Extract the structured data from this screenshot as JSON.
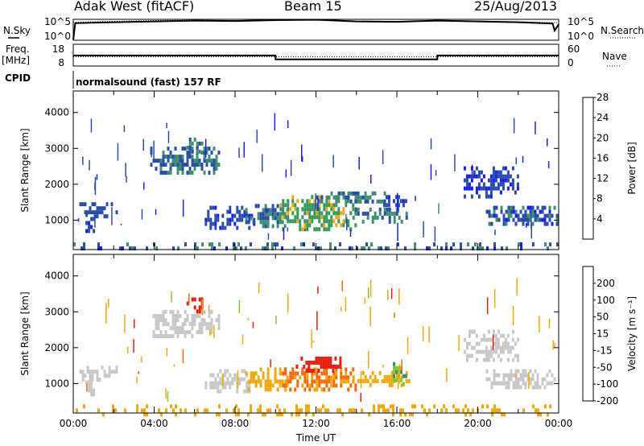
{
  "header": {
    "station": "Adak West (fitACF)",
    "beam": "Beam 15",
    "date": "25/Aug/2013"
  },
  "chart_data": [
    {
      "type": "line",
      "panel": "noise",
      "left_label": "N.Sky",
      "right_label": "N.Search",
      "left_ticks": [
        "10^5",
        "10^0"
      ],
      "right_ticks": [
        "10^5",
        "10^0"
      ],
      "series": [
        {
          "name": "N.Sky",
          "style": "solid",
          "x": [
            0,
            0.1,
            2,
            4,
            6,
            8,
            10,
            12,
            14,
            16,
            18,
            20,
            22,
            23.7,
            23.8,
            24
          ],
          "y": [
            0.2,
            4.1,
            4.3,
            4.5,
            4.7,
            4.6,
            4.8,
            4.9,
            4.5,
            4.4,
            4.7,
            4.5,
            4.3,
            4.0,
            2.3,
            3.8
          ]
        },
        {
          "name": "N.Search",
          "style": "dotted",
          "x": [
            0,
            2,
            4,
            6,
            8,
            10,
            12,
            14,
            16,
            18,
            20,
            22,
            24
          ],
          "y": [
            4.3,
            4.5,
            4.7,
            4.8,
            4.7,
            4.9,
            5.0,
            4.6,
            4.5,
            4.8,
            4.6,
            4.4,
            4.2
          ]
        }
      ]
    },
    {
      "type": "line",
      "panel": "frequency",
      "left_label": "Freq.",
      "left_unit": "[MHz]",
      "right_label": "Nave",
      "left_ticks": [
        "18",
        "8"
      ],
      "right_ticks": [
        "60",
        "0"
      ],
      "cpid_label": "CPID",
      "series": [
        {
          "name": "Freq.",
          "style": "solid",
          "x": [
            0,
            10,
            10,
            18,
            18,
            24
          ],
          "y": [
            12.8,
            12.8,
            10.3,
            10.3,
            12.8,
            12.8
          ]
        },
        {
          "name": "Nave",
          "style": "dotted",
          "x": [
            0,
            24
          ],
          "y": [
            12,
            12
          ]
        }
      ]
    },
    {
      "type": "heatmap",
      "panel": "program",
      "label": "normalsound (fast) 157 RF"
    },
    {
      "type": "heatmap",
      "panel": "power",
      "ylabel": "Slant Range [km]",
      "yticks": [
        1000,
        2000,
        3000,
        4000
      ],
      "ylim": [
        180,
        4600
      ],
      "xlim": [
        0,
        24
      ],
      "colorbar": {
        "label": "Power [dB]",
        "ticks": [
          "4",
          "8",
          "12",
          "16",
          "20",
          "24",
          "28"
        ],
        "colors": [
          "#1a20e8",
          "#2a4ea8",
          "#3e9070",
          "#2ca050",
          "#f0a810",
          "#f26a0a",
          "#e81e0e"
        ]
      },
      "regions": [
        {
          "t": [
            0.3,
            2.2
          ],
          "r": [
            1150,
            1500
          ],
          "v": [
            6,
            8
          ]
        },
        {
          "t": [
            0.6,
            1.0
          ],
          "r": [
            700,
            1200
          ],
          "v": [
            5,
            7
          ]
        },
        {
          "t": [
            3.8,
            7.2
          ],
          "r": [
            2300,
            3050
          ],
          "v": [
            6,
            13
          ]
        },
        {
          "t": [
            5.6,
            6.4
          ],
          "r": [
            2900,
            3300
          ],
          "v": [
            8,
            12
          ]
        },
        {
          "t": [
            6.5,
            8.9
          ],
          "r": [
            800,
            1400
          ],
          "v": [
            5,
            9
          ]
        },
        {
          "t": [
            8.5,
            10.6
          ],
          "r": [
            800,
            1450
          ],
          "v": [
            6,
            13
          ]
        },
        {
          "t": [
            10.2,
            14.0
          ],
          "r": [
            800,
            1700
          ],
          "v": [
            10,
            22
          ]
        },
        {
          "t": [
            12.0,
            15.5
          ],
          "r": [
            1500,
            1800
          ],
          "v": [
            8,
            14
          ]
        },
        {
          "t": [
            13.8,
            16.6
          ],
          "r": [
            1000,
            1350
          ],
          "v": [
            8,
            14
          ]
        },
        {
          "t": [
            15.2,
            16.5
          ],
          "r": [
            1450,
            1700
          ],
          "v": [
            5,
            9
          ]
        },
        {
          "t": [
            20.4,
            23.9
          ],
          "r": [
            850,
            1400
          ],
          "v": [
            5,
            12
          ]
        },
        {
          "t": [
            19.3,
            22.0
          ],
          "r": [
            1700,
            2500
          ],
          "v": [
            5,
            8
          ]
        },
        {
          "t": [
            0.0,
            24.0
          ],
          "r": [
            180,
            380
          ],
          "v": [
            4,
            14
          ]
        }
      ]
    },
    {
      "type": "heatmap",
      "panel": "velocity",
      "ylabel": "Slant Range [km]",
      "yticks": [
        1000,
        2000,
        3000,
        4000
      ],
      "ylim": [
        180,
        4600
      ],
      "xlim": [
        0,
        24
      ],
      "xticks": [
        "00:00",
        "04:00",
        "08:00",
        "12:00",
        "16:00",
        "20:00",
        "00:00"
      ],
      "xlabel": "Time UT",
      "colorbar": {
        "label": "Velocity [m s⁻¹]",
        "ticks": [
          "200",
          "100",
          "50",
          "15",
          "-15",
          "-50",
          "-100",
          "-200"
        ],
        "colors": [
          "#1a20e8",
          "#2a4ea8",
          "#3e9070",
          "#7ccc2c",
          "#c8c8c8",
          "#f0a810",
          "#f26a0a",
          "#e81e0e"
        ]
      },
      "regions": [
        {
          "t": [
            0.3,
            2.2
          ],
          "r": [
            1150,
            1500
          ],
          "v": [
            -15,
            15
          ]
        },
        {
          "t": [
            0.6,
            1.0
          ],
          "r": [
            700,
            1200
          ],
          "v": [
            -15,
            15
          ]
        },
        {
          "t": [
            3.8,
            7.2
          ],
          "r": [
            2300,
            3050
          ],
          "v": [
            -15,
            15
          ]
        },
        {
          "t": [
            5.6,
            6.4
          ],
          "r": [
            2950,
            3400
          ],
          "v": [
            -200,
            -150
          ]
        },
        {
          "t": [
            6.5,
            8.9
          ],
          "r": [
            800,
            1400
          ],
          "v": [
            -15,
            15
          ]
        },
        {
          "t": [
            8.5,
            10.6
          ],
          "r": [
            800,
            1450
          ],
          "v": [
            -60,
            -40
          ]
        },
        {
          "t": [
            10.2,
            14.0
          ],
          "r": [
            800,
            1450
          ],
          "v": [
            -120,
            -60
          ]
        },
        {
          "t": [
            11.0,
            13.2
          ],
          "r": [
            1400,
            1750
          ],
          "v": [
            -200,
            -150
          ]
        },
        {
          "t": [
            13.8,
            16.6
          ],
          "r": [
            1000,
            1350
          ],
          "v": [
            -60,
            -40
          ]
        },
        {
          "t": [
            15.8,
            16.4
          ],
          "r": [
            1000,
            1600
          ],
          "v": [
            20,
            40
          ]
        },
        {
          "t": [
            20.4,
            23.9
          ],
          "r": [
            850,
            1400
          ],
          "v": [
            -15,
            15
          ]
        },
        {
          "t": [
            19.3,
            22.0
          ],
          "r": [
            1700,
            2500
          ],
          "v": [
            -15,
            15
          ]
        },
        {
          "t": [
            0.0,
            24.0
          ],
          "r": [
            180,
            420
          ],
          "v": [
            -70,
            -40
          ]
        }
      ]
    }
  ]
}
